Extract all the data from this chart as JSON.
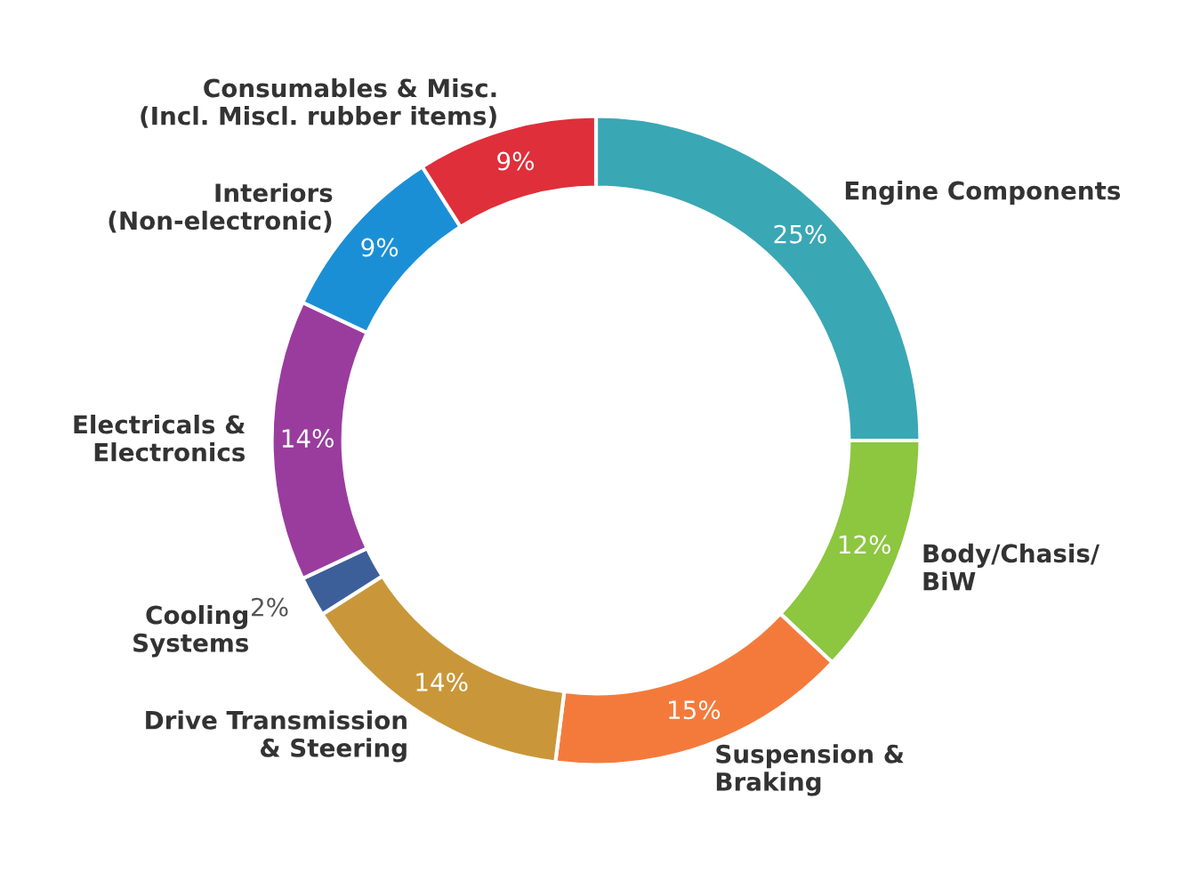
{
  "chart_data": {
    "type": "donut",
    "categories": [
      "Engine Components",
      "Body/Chasis/\nBiW",
      "Suspension &\nBraking",
      "Drive Transmission\n& Steering",
      "Cooling\nSystems",
      "Electricals &\nElectronics",
      "Interiors\n(Non-electronic)",
      "Consumables & Misc.\n(Incl. Miscl. rubber items)"
    ],
    "values": [
      25,
      12,
      15,
      14,
      2,
      14,
      9,
      9
    ],
    "value_labels": [
      "25%",
      "12%",
      "15%",
      "14%",
      "2%",
      "14%",
      "9%",
      "9%"
    ],
    "colors": [
      "#3aa7b4",
      "#8dc63f",
      "#f47a3c",
      "#c9973a",
      "#3d5f99",
      "#9a3c9e",
      "#1b8fd6",
      "#df2f3a"
    ],
    "legend": false
  }
}
